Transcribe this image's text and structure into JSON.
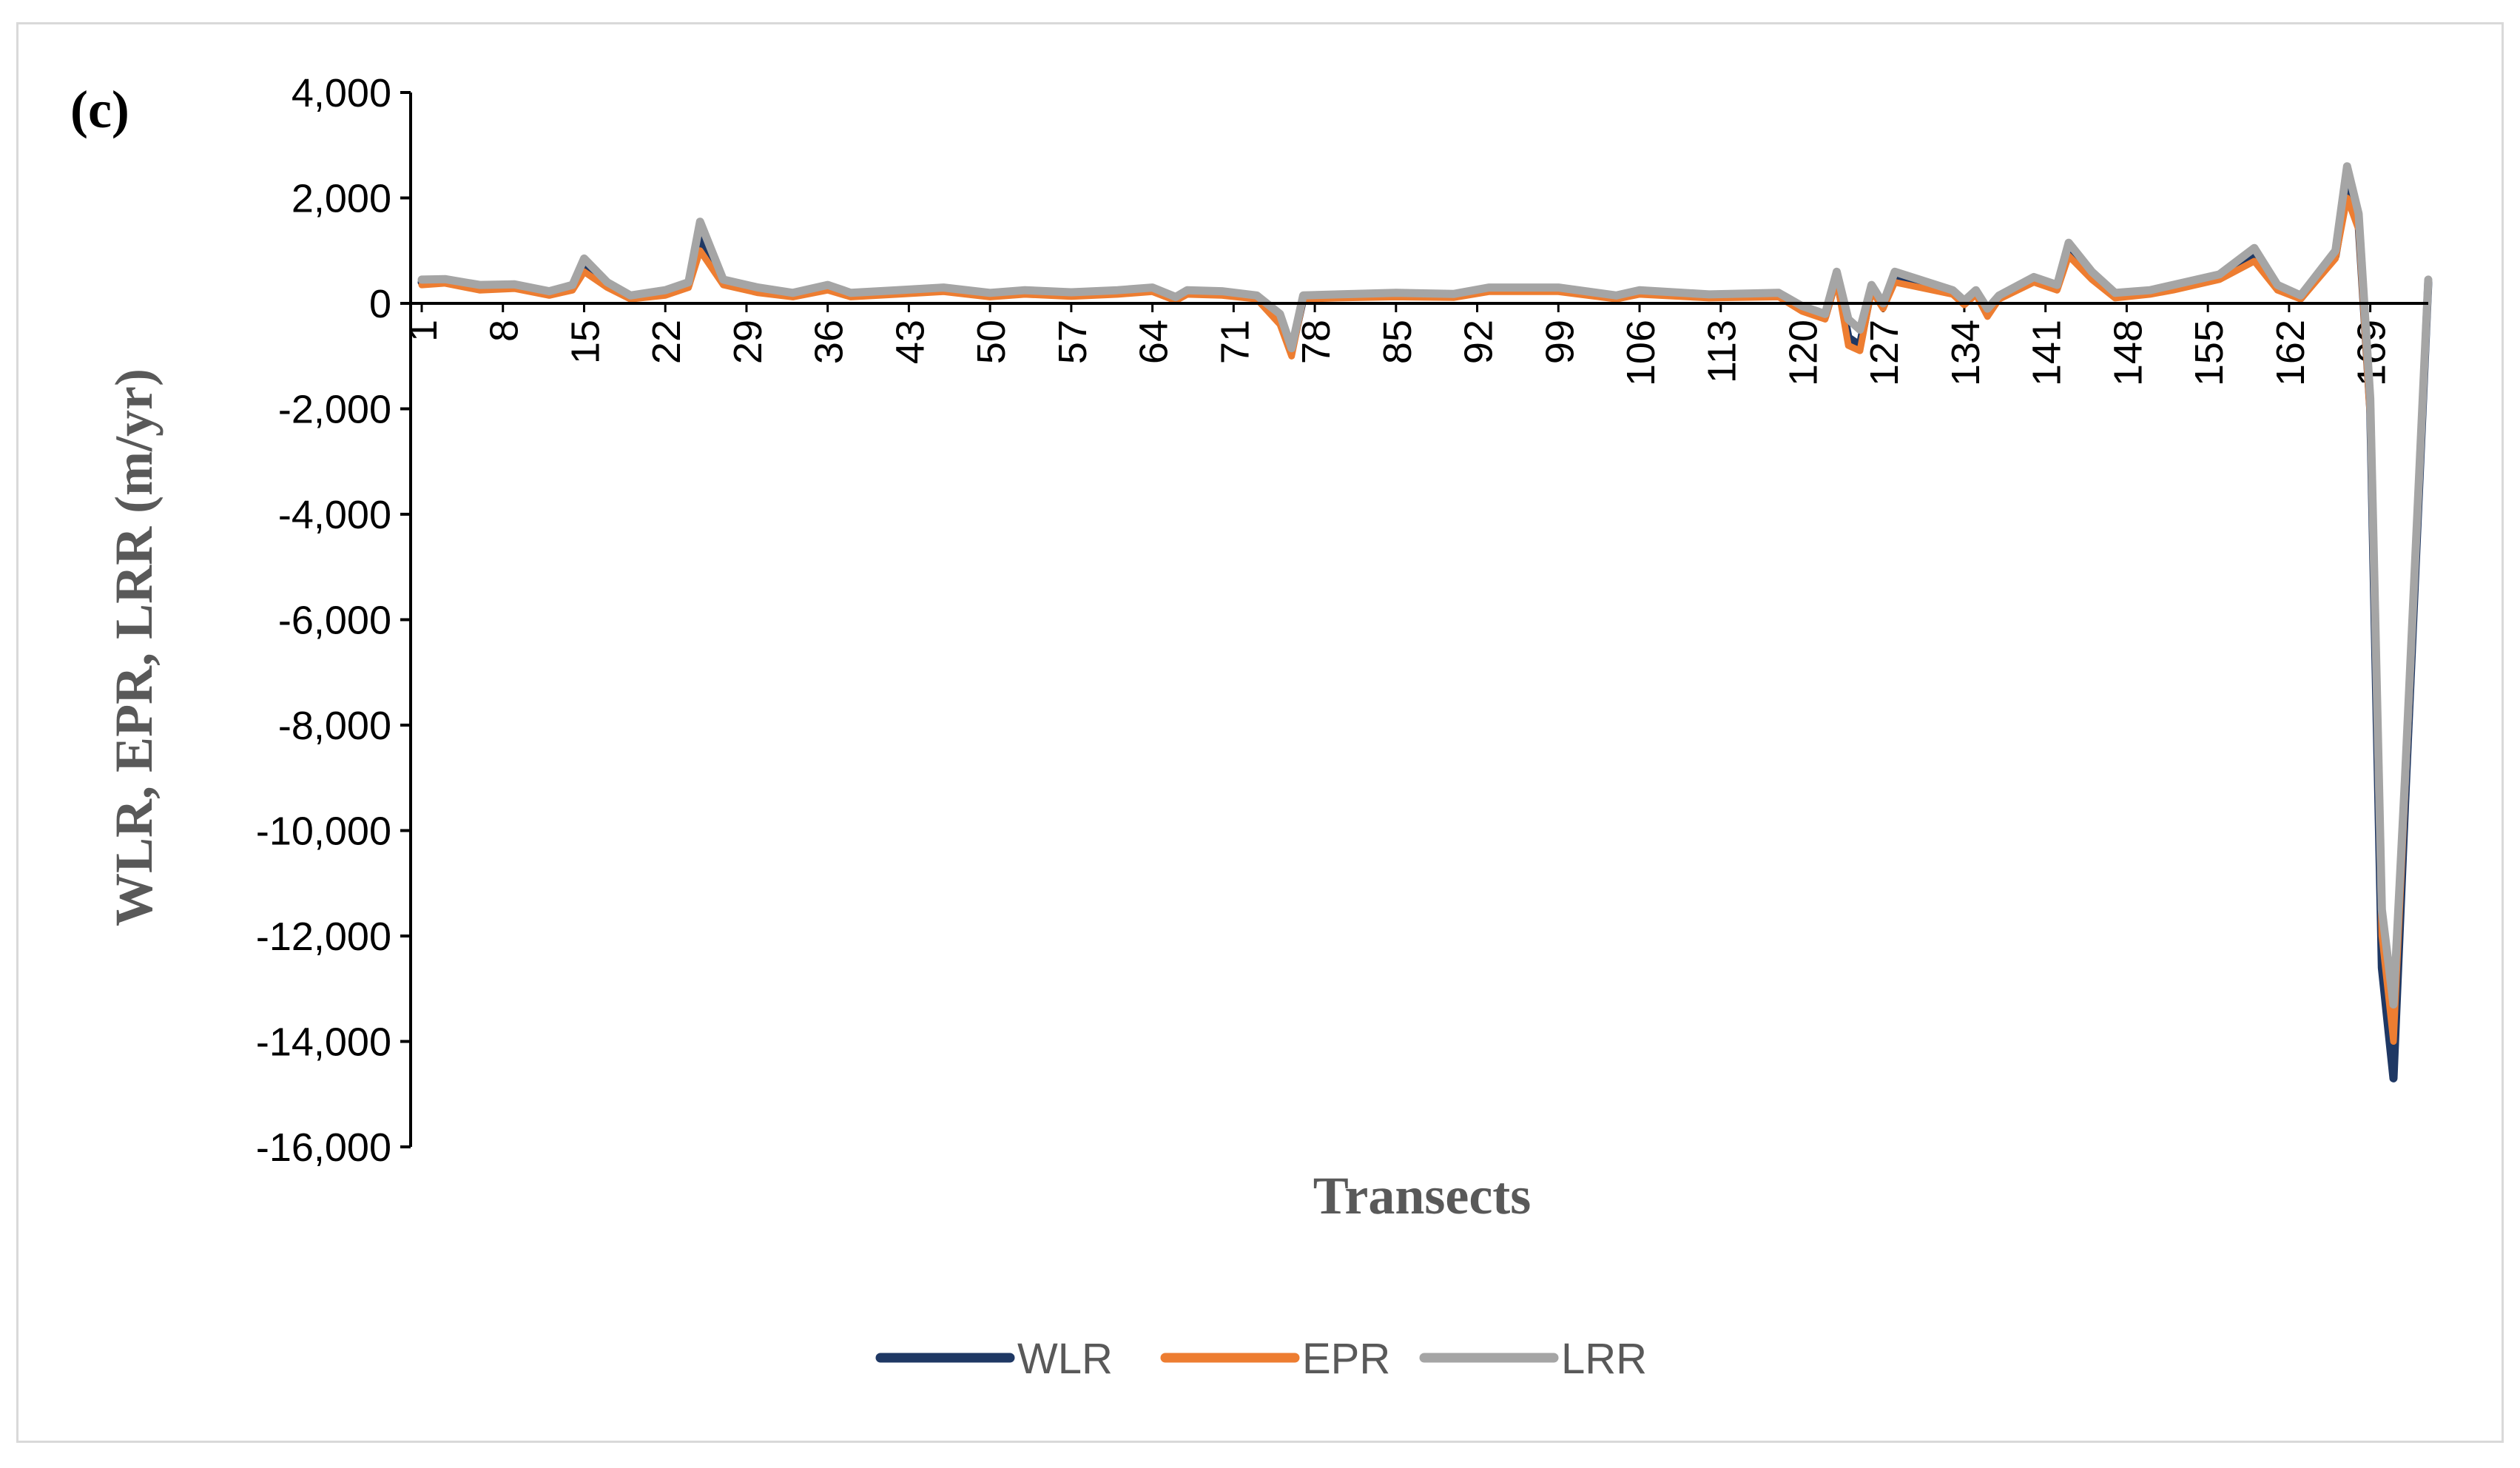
{
  "panel_label": "(c)",
  "chart_data": {
    "type": "line",
    "title": "",
    "xlabel": "Transects",
    "ylabel": "WLR, EPR, LRR (m/yr)",
    "ylim": [
      -16000,
      4000
    ],
    "ytick_step": 2000,
    "yticks": [
      "4,000",
      "2,000",
      "0",
      "-2,000",
      "-4,000",
      "-6,000",
      "-8,000",
      "-10,000",
      "-12,000",
      "-14,000",
      "-16,000"
    ],
    "xlim": [
      1,
      174
    ],
    "xticks": [
      1,
      8,
      15,
      22,
      29,
      36,
      43,
      50,
      57,
      64,
      71,
      78,
      85,
      92,
      99,
      106,
      113,
      120,
      127,
      134,
      141,
      148,
      155,
      162,
      169
    ],
    "grid": false,
    "legend_position": "bottom",
    "colors": {
      "WLR": "#1f3864",
      "EPR": "#ed7d31",
      "LRR": "#a5a5a5"
    },
    "series_keypoints": [
      {
        "name": "WLR",
        "points": [
          [
            1,
            400
          ],
          [
            3,
            420
          ],
          [
            6,
            300
          ],
          [
            9,
            320
          ],
          [
            12,
            180
          ],
          [
            14,
            300
          ],
          [
            15,
            700
          ],
          [
            17,
            350
          ],
          [
            19,
            100
          ],
          [
            22,
            200
          ],
          [
            24,
            350
          ],
          [
            25,
            1200
          ],
          [
            27,
            400
          ],
          [
            30,
            250
          ],
          [
            33,
            150
          ],
          [
            36,
            300
          ],
          [
            38,
            150
          ],
          [
            42,
            200
          ],
          [
            46,
            250
          ],
          [
            50,
            150
          ],
          [
            53,
            200
          ],
          [
            57,
            160
          ],
          [
            61,
            200
          ],
          [
            64,
            250
          ],
          [
            66,
            80
          ],
          [
            67,
            200
          ],
          [
            70,
            180
          ],
          [
            73,
            100
          ],
          [
            75,
            -300
          ],
          [
            76,
            -900
          ],
          [
            77,
            100
          ],
          [
            80,
            120
          ],
          [
            85,
            150
          ],
          [
            90,
            130
          ],
          [
            93,
            250
          ],
          [
            99,
            250
          ],
          [
            104,
            100
          ],
          [
            106,
            200
          ],
          [
            112,
            120
          ],
          [
            118,
            150
          ],
          [
            120,
            -100
          ],
          [
            122,
            -250
          ],
          [
            123,
            500
          ],
          [
            124,
            -650
          ],
          [
            125,
            -800
          ],
          [
            126,
            300
          ],
          [
            127,
            -50
          ],
          [
            128,
            450
          ],
          [
            133,
            200
          ],
          [
            134,
            0
          ],
          [
            135,
            200
          ],
          [
            136,
            -150
          ],
          [
            137,
            100
          ],
          [
            140,
            450
          ],
          [
            142,
            300
          ],
          [
            143,
            1000
          ],
          [
            145,
            500
          ],
          [
            147,
            150
          ],
          [
            150,
            200
          ],
          [
            152,
            300
          ],
          [
            156,
            500
          ],
          [
            159,
            900
          ],
          [
            161,
            300
          ],
          [
            163,
            100
          ],
          [
            166,
            900
          ],
          [
            167,
            2200
          ],
          [
            168,
            1500
          ],
          [
            169,
            -2000
          ],
          [
            170,
            -12600
          ],
          [
            171,
            -14700
          ],
          [
            172,
            -9500
          ],
          [
            174,
            400
          ]
        ]
      },
      {
        "name": "EPR",
        "points": [
          [
            1,
            350
          ],
          [
            3,
            380
          ],
          [
            6,
            250
          ],
          [
            9,
            280
          ],
          [
            12,
            150
          ],
          [
            14,
            250
          ],
          [
            15,
            600
          ],
          [
            17,
            300
          ],
          [
            19,
            80
          ],
          [
            22,
            150
          ],
          [
            24,
            300
          ],
          [
            25,
            1000
          ],
          [
            27,
            350
          ],
          [
            30,
            200
          ],
          [
            33,
            120
          ],
          [
            36,
            250
          ],
          [
            38,
            120
          ],
          [
            42,
            170
          ],
          [
            46,
            220
          ],
          [
            50,
            120
          ],
          [
            53,
            170
          ],
          [
            57,
            130
          ],
          [
            61,
            170
          ],
          [
            64,
            220
          ],
          [
            66,
            50
          ],
          [
            67,
            170
          ],
          [
            70,
            150
          ],
          [
            73,
            80
          ],
          [
            75,
            -400
          ],
          [
            76,
            -1000
          ],
          [
            77,
            80
          ],
          [
            80,
            100
          ],
          [
            85,
            120
          ],
          [
            90,
            110
          ],
          [
            93,
            220
          ],
          [
            99,
            220
          ],
          [
            104,
            80
          ],
          [
            106,
            170
          ],
          [
            112,
            100
          ],
          [
            118,
            120
          ],
          [
            120,
            -150
          ],
          [
            122,
            -300
          ],
          [
            123,
            450
          ],
          [
            124,
            -800
          ],
          [
            125,
            -900
          ],
          [
            126,
            250
          ],
          [
            127,
            -100
          ],
          [
            128,
            400
          ],
          [
            133,
            170
          ],
          [
            134,
            -30
          ],
          [
            135,
            170
          ],
          [
            136,
            -250
          ],
          [
            137,
            80
          ],
          [
            140,
            400
          ],
          [
            142,
            250
          ],
          [
            143,
            900
          ],
          [
            145,
            450
          ],
          [
            147,
            100
          ],
          [
            150,
            170
          ],
          [
            152,
            250
          ],
          [
            156,
            450
          ],
          [
            159,
            800
          ],
          [
            161,
            250
          ],
          [
            163,
            80
          ],
          [
            166,
            850
          ],
          [
            167,
            2000
          ],
          [
            168,
            1400
          ],
          [
            169,
            -2200
          ],
          [
            170,
            -12000
          ],
          [
            171,
            -14000
          ],
          [
            172,
            -9300
          ],
          [
            174,
            350
          ]
        ]
      },
      {
        "name": "LRR",
        "points": [
          [
            1,
            450
          ],
          [
            3,
            460
          ],
          [
            6,
            350
          ],
          [
            9,
            360
          ],
          [
            12,
            230
          ],
          [
            14,
            350
          ],
          [
            15,
            850
          ],
          [
            17,
            400
          ],
          [
            19,
            150
          ],
          [
            22,
            250
          ],
          [
            24,
            400
          ],
          [
            25,
            1550
          ],
          [
            27,
            450
          ],
          [
            30,
            300
          ],
          [
            33,
            200
          ],
          [
            36,
            350
          ],
          [
            38,
            200
          ],
          [
            42,
            250
          ],
          [
            46,
            300
          ],
          [
            50,
            200
          ],
          [
            53,
            250
          ],
          [
            57,
            210
          ],
          [
            61,
            250
          ],
          [
            64,
            300
          ],
          [
            66,
            120
          ],
          [
            67,
            250
          ],
          [
            70,
            230
          ],
          [
            73,
            150
          ],
          [
            75,
            -200
          ],
          [
            76,
            -850
          ],
          [
            77,
            150
          ],
          [
            80,
            170
          ],
          [
            85,
            200
          ],
          [
            90,
            180
          ],
          [
            93,
            300
          ],
          [
            99,
            300
          ],
          [
            104,
            150
          ],
          [
            106,
            250
          ],
          [
            112,
            170
          ],
          [
            118,
            200
          ],
          [
            120,
            -50
          ],
          [
            122,
            -200
          ],
          [
            123,
            600
          ],
          [
            124,
            -300
          ],
          [
            125,
            -500
          ],
          [
            126,
            350
          ],
          [
            127,
            0
          ],
          [
            128,
            600
          ],
          [
            133,
            250
          ],
          [
            134,
            50
          ],
          [
            135,
            250
          ],
          [
            136,
            -100
          ],
          [
            137,
            150
          ],
          [
            140,
            500
          ],
          [
            142,
            350
          ],
          [
            143,
            1150
          ],
          [
            145,
            600
          ],
          [
            147,
            200
          ],
          [
            150,
            250
          ],
          [
            152,
            350
          ],
          [
            156,
            550
          ],
          [
            159,
            1050
          ],
          [
            161,
            350
          ],
          [
            163,
            150
          ],
          [
            166,
            1000
          ],
          [
            167,
            2600
          ],
          [
            168,
            1700
          ],
          [
            169,
            -1800
          ],
          [
            170,
            -11500
          ],
          [
            171,
            -13300
          ],
          [
            172,
            -9000
          ],
          [
            174,
            450
          ]
        ]
      }
    ]
  },
  "legend": {
    "items": [
      {
        "name": "WLR"
      },
      {
        "name": "EPR"
      },
      {
        "name": "LRR"
      }
    ]
  }
}
